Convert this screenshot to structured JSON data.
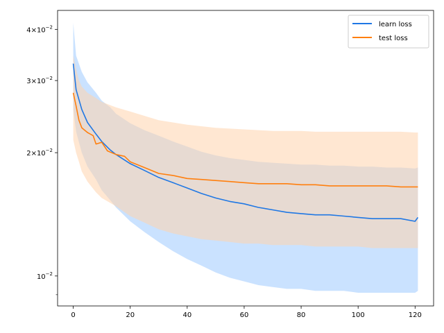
{
  "chart_data": {
    "type": "line",
    "title": "",
    "xlabel": "",
    "ylabel": "",
    "yscale": "log",
    "xlim": [
      -5.5,
      126.5
    ],
    "ylim": [
      0.00845,
      0.0445
    ],
    "grid": false,
    "legend_position": "top-right",
    "x_ticks": [
      0,
      20,
      40,
      60,
      80,
      100,
      120
    ],
    "y_tick_labels": [
      {
        "value": 0.04,
        "mantissa": "4",
        "base": "10",
        "exp": "−2"
      },
      {
        "value": 0.03,
        "mantissa": "3",
        "base": "10",
        "exp": "−2"
      },
      {
        "value": 0.02,
        "mantissa": "2",
        "base": "10",
        "exp": "−2"
      },
      {
        "value": 0.01,
        "mantissa": "",
        "base": "10",
        "exp": "−2"
      }
    ],
    "y_minor_unlabeled": [
      0.009
    ],
    "series": [
      {
        "name": "learn loss",
        "color": "#1f77e4",
        "band_color": "#9ecbff",
        "mean": [
          [
            0,
            0.033
          ],
          [
            1,
            0.0285
          ],
          [
            3,
            0.0255
          ],
          [
            5,
            0.0237
          ],
          [
            8,
            0.0222
          ],
          [
            10,
            0.0213
          ],
          [
            13,
            0.0203
          ],
          [
            15,
            0.0198
          ],
          [
            20,
            0.0188
          ],
          [
            25,
            0.0181
          ],
          [
            30,
            0.0174
          ],
          [
            35,
            0.0169
          ],
          [
            40,
            0.0164
          ],
          [
            45,
            0.0159
          ],
          [
            50,
            0.0155
          ],
          [
            55,
            0.0152
          ],
          [
            60,
            0.015
          ],
          [
            65,
            0.0147
          ],
          [
            70,
            0.0145
          ],
          [
            75,
            0.0143
          ],
          [
            80,
            0.0142
          ],
          [
            85,
            0.0141
          ],
          [
            90,
            0.0141
          ],
          [
            95,
            0.014
          ],
          [
            100,
            0.0139
          ],
          [
            105,
            0.0138
          ],
          [
            110,
            0.0138
          ],
          [
            115,
            0.0138
          ],
          [
            120,
            0.0136
          ],
          [
            121,
            0.0139
          ]
        ],
        "upper": [
          [
            0,
            0.0415
          ],
          [
            1,
            0.0345
          ],
          [
            3,
            0.0315
          ],
          [
            5,
            0.0297
          ],
          [
            8,
            0.028
          ],
          [
            10,
            0.0268
          ],
          [
            13,
            0.0258
          ],
          [
            15,
            0.0249
          ],
          [
            20,
            0.0236
          ],
          [
            25,
            0.0227
          ],
          [
            30,
            0.022
          ],
          [
            35,
            0.0213
          ],
          [
            40,
            0.0207
          ],
          [
            45,
            0.0201
          ],
          [
            50,
            0.0197
          ],
          [
            55,
            0.0194
          ],
          [
            60,
            0.0192
          ],
          [
            65,
            0.019
          ],
          [
            70,
            0.0189
          ],
          [
            75,
            0.0188
          ],
          [
            80,
            0.0187
          ],
          [
            85,
            0.0187
          ],
          [
            90,
            0.0186
          ],
          [
            95,
            0.0186
          ],
          [
            100,
            0.0185
          ],
          [
            105,
            0.0185
          ],
          [
            110,
            0.0184
          ],
          [
            115,
            0.0184
          ],
          [
            120,
            0.0183
          ],
          [
            121,
            0.0184
          ]
        ],
        "lower": [
          [
            0,
            0.0255
          ],
          [
            1,
            0.0225
          ],
          [
            3,
            0.02
          ],
          [
            5,
            0.0185
          ],
          [
            8,
            0.0172
          ],
          [
            10,
            0.0162
          ],
          [
            13,
            0.0153
          ],
          [
            15,
            0.0147
          ],
          [
            20,
            0.0136
          ],
          [
            25,
            0.0128
          ],
          [
            30,
            0.0121
          ],
          [
            35,
            0.0115
          ],
          [
            40,
            0.011
          ],
          [
            45,
            0.0106
          ],
          [
            50,
            0.0102
          ],
          [
            55,
            0.0099
          ],
          [
            60,
            0.0097
          ],
          [
            65,
            0.0095
          ],
          [
            70,
            0.0094
          ],
          [
            75,
            0.0093
          ],
          [
            80,
            0.0093
          ],
          [
            85,
            0.0092
          ],
          [
            90,
            0.0092
          ],
          [
            95,
            0.0092
          ],
          [
            100,
            0.0091
          ],
          [
            105,
            0.0091
          ],
          [
            110,
            0.0091
          ],
          [
            115,
            0.0091
          ],
          [
            120,
            0.0091
          ],
          [
            121,
            0.0092
          ]
        ]
      },
      {
        "name": "test loss",
        "color": "#ff7f0e",
        "band_color": "#ffd3ad",
        "mean": [
          [
            0,
            0.028
          ],
          [
            1,
            0.026
          ],
          [
            2,
            0.024
          ],
          [
            3,
            0.023
          ],
          [
            5,
            0.0224
          ],
          [
            7,
            0.022
          ],
          [
            8,
            0.021
          ],
          [
            10,
            0.0212
          ],
          [
            12,
            0.0202
          ],
          [
            15,
            0.0198
          ],
          [
            18,
            0.0196
          ],
          [
            20,
            0.019
          ],
          [
            25,
            0.0184
          ],
          [
            30,
            0.0178
          ],
          [
            35,
            0.0176
          ],
          [
            40,
            0.0173
          ],
          [
            45,
            0.0172
          ],
          [
            50,
            0.0171
          ],
          [
            55,
            0.017
          ],
          [
            60,
            0.0169
          ],
          [
            65,
            0.0168
          ],
          [
            70,
            0.0168
          ],
          [
            75,
            0.0168
          ],
          [
            80,
            0.0167
          ],
          [
            85,
            0.0167
          ],
          [
            90,
            0.0166
          ],
          [
            95,
            0.0166
          ],
          [
            100,
            0.0166
          ],
          [
            105,
            0.0166
          ],
          [
            110,
            0.0166
          ],
          [
            115,
            0.0165
          ],
          [
            120,
            0.0165
          ],
          [
            121,
            0.0165
          ]
        ],
        "upper": [
          [
            0,
            0.0345
          ],
          [
            1,
            0.032
          ],
          [
            2,
            0.03
          ],
          [
            3,
            0.029
          ],
          [
            5,
            0.028
          ],
          [
            8,
            0.0272
          ],
          [
            10,
            0.0266
          ],
          [
            15,
            0.0258
          ],
          [
            20,
            0.0252
          ],
          [
            25,
            0.0246
          ],
          [
            30,
            0.024
          ],
          [
            35,
            0.0237
          ],
          [
            40,
            0.0234
          ],
          [
            45,
            0.0232
          ],
          [
            50,
            0.023
          ],
          [
            55,
            0.0229
          ],
          [
            60,
            0.0228
          ],
          [
            65,
            0.0227
          ],
          [
            70,
            0.0226
          ],
          [
            75,
            0.0226
          ],
          [
            80,
            0.0226
          ],
          [
            85,
            0.0225
          ],
          [
            90,
            0.0225
          ],
          [
            95,
            0.0225
          ],
          [
            100,
            0.0225
          ],
          [
            105,
            0.0225
          ],
          [
            110,
            0.0225
          ],
          [
            115,
            0.0225
          ],
          [
            120,
            0.0224
          ],
          [
            121,
            0.0224
          ]
        ],
        "lower": [
          [
            0,
            0.0215
          ],
          [
            1,
            0.02
          ],
          [
            2,
            0.019
          ],
          [
            3,
            0.018
          ],
          [
            5,
            0.017
          ],
          [
            8,
            0.016
          ],
          [
            10,
            0.0155
          ],
          [
            15,
            0.0148
          ],
          [
            20,
            0.014
          ],
          [
            25,
            0.0135
          ],
          [
            30,
            0.013
          ],
          [
            35,
            0.0127
          ],
          [
            40,
            0.0125
          ],
          [
            45,
            0.0123
          ],
          [
            50,
            0.0122
          ],
          [
            55,
            0.0121
          ],
          [
            60,
            0.012
          ],
          [
            65,
            0.012
          ],
          [
            70,
            0.0119
          ],
          [
            75,
            0.0119
          ],
          [
            80,
            0.0119
          ],
          [
            85,
            0.0118
          ],
          [
            90,
            0.0118
          ],
          [
            95,
            0.0118
          ],
          [
            100,
            0.0118
          ],
          [
            105,
            0.0117
          ],
          [
            110,
            0.0117
          ],
          [
            115,
            0.0117
          ],
          [
            120,
            0.0117
          ],
          [
            121,
            0.0117
          ]
        ]
      }
    ]
  }
}
